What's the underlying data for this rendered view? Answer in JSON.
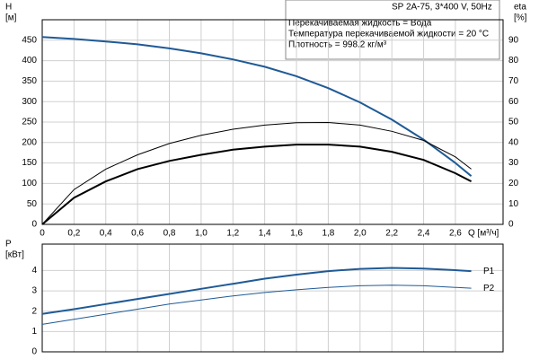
{
  "chart_data": [
    {
      "type": "line",
      "title": "SP 2A-75, 3*400 V, 50Hz",
      "annotations": [
        "Перекачиваемая жидкость = Вода",
        "Температура перекачиваемой жидкости = 20 °C",
        "Плотность = 998.2 кг/м³"
      ],
      "ylabel": "H",
      "ylabel_unit": "[м]",
      "y2label": "eta",
      "y2label_unit": "[%]",
      "xlabel": "Q [м³/ч]",
      "x": [
        0,
        0.2,
        0.4,
        0.6,
        0.8,
        1.0,
        1.2,
        1.4,
        1.6,
        1.8,
        2.0,
        2.2,
        2.4,
        2.6,
        2.7
      ],
      "series": [
        {
          "color": "#1f5a96",
          "linewidth": 2,
          "values": [
            458,
            453,
            447,
            440,
            430,
            418,
            403,
            385,
            362,
            333,
            298,
            256,
            207,
            150,
            118
          ]
        },
        {
          "color": "#000000",
          "linewidth": 1,
          "axis": "y2",
          "values": [
            0,
            17,
            27,
            34,
            39.5,
            43.5,
            46.5,
            48.5,
            49.7,
            49.8,
            48.5,
            45.5,
            41,
            33,
            27
          ]
        },
        {
          "color": "#000000",
          "linewidth": 2,
          "axis": "y2",
          "values": [
            0,
            13,
            21,
            27,
            31,
            34,
            36.5,
            38,
            39,
            39,
            38,
            35.5,
            31.5,
            25,
            21
          ]
        }
      ],
      "xlim": [
        0,
        2.9
      ],
      "xticks": [
        0,
        {
          "value": 0.2,
          "label": "0,2"
        },
        {
          "value": 0.4,
          "label": "0,4"
        },
        {
          "value": 0.6,
          "label": "0,6"
        },
        {
          "value": 0.8,
          "label": "0,8"
        },
        {
          "value": 1.0,
          "label": "1,0"
        },
        {
          "value": 1.2,
          "label": "1,2"
        },
        {
          "value": 1.4,
          "label": "1,4"
        },
        {
          "value": 1.6,
          "label": "1,6"
        },
        {
          "value": 1.8,
          "label": "1,8"
        },
        {
          "value": 2.0,
          "label": "2,0"
        },
        {
          "value": 2.2,
          "label": "2,2"
        },
        {
          "value": 2.4,
          "label": "2,4"
        },
        {
          "value": 2.6,
          "label": "2,6"
        }
      ],
      "ylim": [
        0,
        500
      ],
      "yticks": [
        0,
        50,
        100,
        150,
        200,
        250,
        300,
        350,
        400,
        450
      ],
      "y2lim": [
        0,
        100
      ],
      "y2ticks": [
        0,
        10,
        20,
        30,
        40,
        50,
        60,
        70,
        80,
        90
      ],
      "grid": true
    },
    {
      "type": "line",
      "ylabel": "P",
      "ylabel_unit": "[кВт]",
      "x": [
        0,
        0.2,
        0.4,
        0.6,
        0.8,
        1.0,
        1.2,
        1.4,
        1.6,
        1.8,
        2.0,
        2.2,
        2.4,
        2.6,
        2.7
      ],
      "series": [
        {
          "name": "P1",
          "color": "#1f5a96",
          "linewidth": 2,
          "values": [
            1.87,
            2.1,
            2.35,
            2.6,
            2.85,
            3.1,
            3.35,
            3.6,
            3.8,
            3.97,
            4.08,
            4.13,
            4.1,
            4.02,
            3.97
          ]
        },
        {
          "name": "P2",
          "color": "#1f5a96",
          "linewidth": 1,
          "values": [
            1.35,
            1.6,
            1.85,
            2.1,
            2.35,
            2.55,
            2.75,
            2.92,
            3.05,
            3.17,
            3.25,
            3.28,
            3.25,
            3.17,
            3.13
          ]
        }
      ],
      "xlim": [
        0,
        2.9
      ],
      "xticks": [
        0,
        0.2,
        0.4,
        0.6,
        0.8,
        1.0,
        1.2,
        1.4,
        1.6,
        1.8,
        2.0,
        2.2,
        2.4,
        2.6
      ],
      "ylim": [
        0,
        5.3
      ],
      "yticks": [
        0,
        1,
        2,
        3,
        4
      ],
      "grid": true
    }
  ]
}
